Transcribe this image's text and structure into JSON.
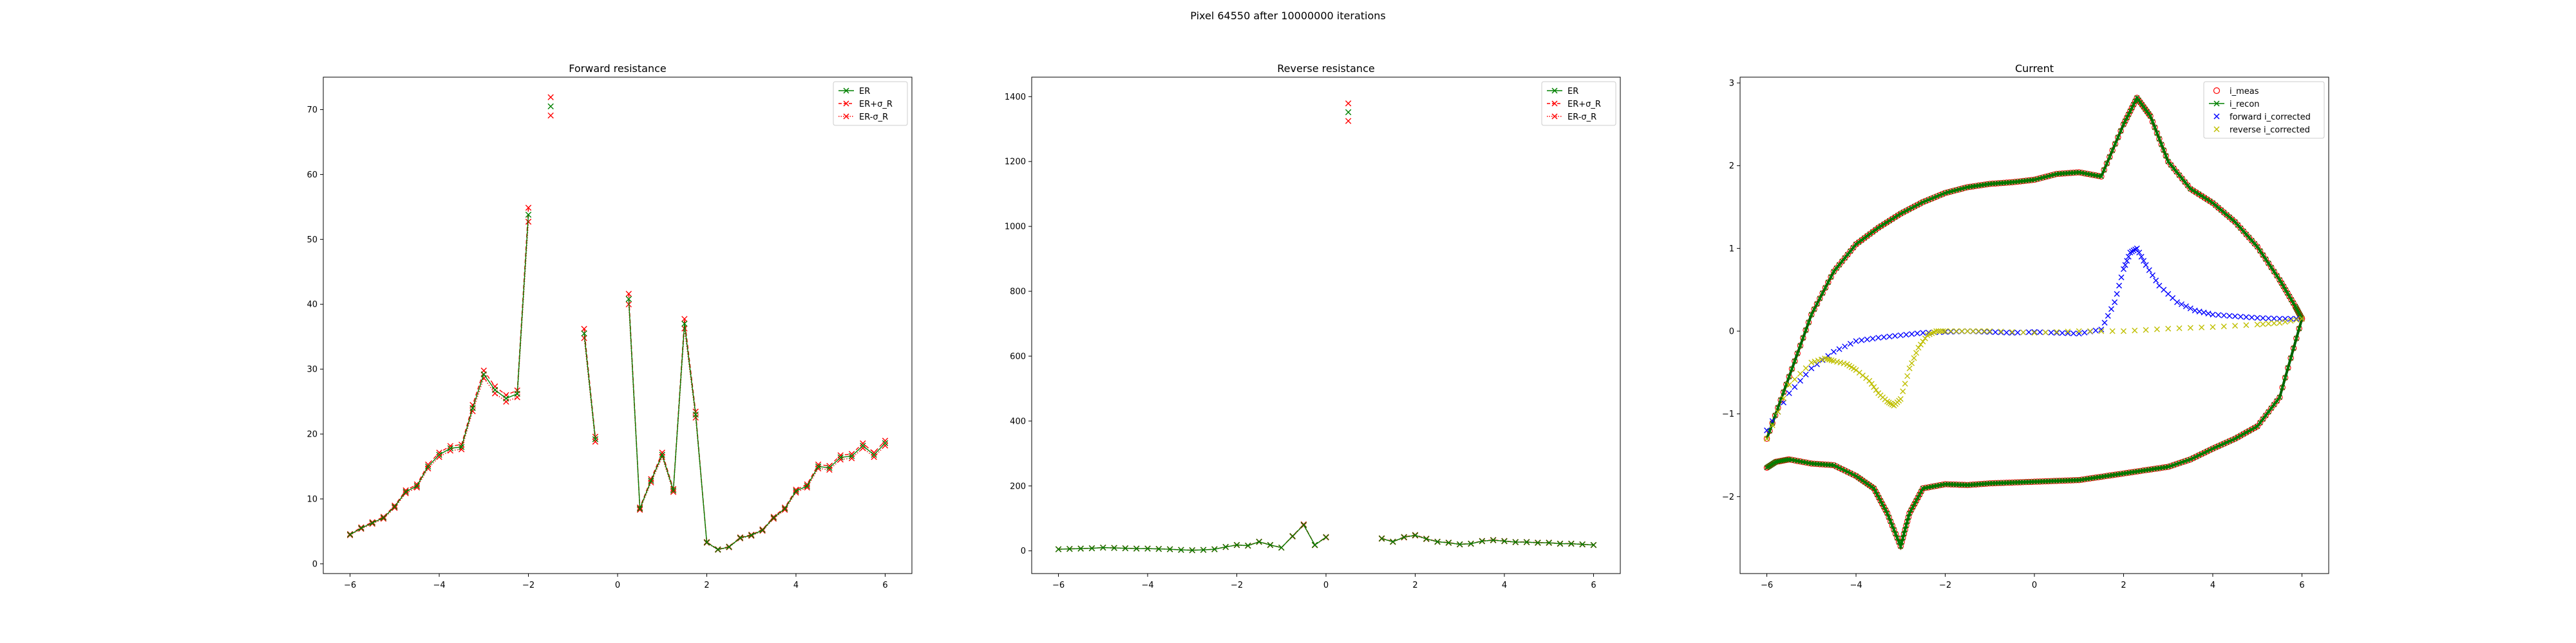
{
  "figure": {
    "suptitle": "Pixel 64550 after 10000000 iterations"
  },
  "chart_data": [
    {
      "type": "line",
      "title": "Forward resistance",
      "xlabel": "",
      "ylabel": "",
      "xlim": [
        -6.6,
        6.6
      ],
      "ylim": [
        -1.5,
        75
      ],
      "xticks": [
        -6,
        -4,
        -2,
        0,
        2,
        4,
        6
      ],
      "yticks": [
        0,
        10,
        20,
        30,
        40,
        50,
        60,
        70
      ],
      "legend_position": "top-right",
      "grid": false,
      "segments": [
        {
          "x": [
            -6.0,
            -5.75,
            -5.5,
            -5.25,
            -5.0,
            -4.75,
            -4.5,
            -4.25,
            -4.0,
            -3.75,
            -3.5,
            -3.25,
            -3.0,
            -2.75,
            -2.5,
            -2.25,
            -2.0
          ],
          "y": [
            4.5,
            5.5,
            6.3,
            7.1,
            8.8,
            11.1,
            12.0,
            15.0,
            16.8,
            17.8,
            18.0,
            24.0,
            29.2,
            26.8,
            25.5,
            26.2,
            53.8
          ]
        },
        {
          "x": [
            -1.5
          ],
          "y": [
            70.5
          ]
        },
        {
          "x": [
            -0.75,
            -0.5
          ],
          "y": [
            35.5,
            19.2
          ]
        },
        {
          "x": [
            0.25,
            0.5,
            0.75,
            1.0,
            1.25,
            1.5,
            1.75,
            2.0,
            2.25,
            2.5,
            2.75,
            3.0,
            3.25,
            3.5,
            3.75,
            4.0,
            4.25,
            4.5,
            4.75,
            5.0,
            5.25,
            5.5,
            5.75,
            6.0
          ],
          "y": [
            40.8,
            8.5,
            12.8,
            16.8,
            11.3,
            37.0,
            23.0,
            3.3,
            2.2,
            2.6,
            4.0,
            4.4,
            5.2,
            7.1,
            8.5,
            11.2,
            12.0,
            15.0,
            14.8,
            16.4,
            16.6,
            18.2,
            16.8,
            18.6
          ]
        }
      ],
      "error_fraction": 0.02,
      "series": [
        {
          "name": "ER",
          "color": "#008000",
          "marker": "x",
          "line": "solid"
        },
        {
          "name": "ER+σ_R",
          "color": "#ff0000",
          "marker": "x",
          "line": "dashed"
        },
        {
          "name": "ER-σ_R",
          "color": "#ff0000",
          "marker": "x",
          "line": "dotted"
        }
      ]
    },
    {
      "type": "line",
      "title": "Reverse resistance",
      "xlabel": "",
      "ylabel": "",
      "xlim": [
        -6.6,
        6.6
      ],
      "ylim": [
        -70,
        1460
      ],
      "xticks": [
        -6,
        -4,
        -2,
        0,
        2,
        4,
        6
      ],
      "yticks": [
        0,
        200,
        400,
        600,
        800,
        1000,
        1200,
        1400
      ],
      "legend_position": "top-right",
      "grid": false,
      "segments": [
        {
          "x": [
            -6.0,
            -5.75,
            -5.5,
            -5.25,
            -5.0,
            -4.75,
            -4.5,
            -4.25,
            -4.0,
            -3.75,
            -3.5,
            -3.25,
            -3.0,
            -2.75,
            -2.5,
            -2.25,
            -2.0,
            -1.75,
            -1.5,
            -1.25,
            -1.0,
            -0.75,
            -0.5,
            -0.25
          ],
          "y": [
            5,
            6,
            7,
            8,
            10,
            9,
            8,
            7,
            7,
            6,
            5,
            3,
            2,
            3,
            5,
            12,
            18,
            16,
            28,
            18,
            10,
            45,
            80,
            18
          ]
        },
        {
          "x": [
            -0.25,
            0.0
          ],
          "y": [
            18,
            42
          ]
        },
        {
          "x": [
            0.5
          ],
          "y": [
            1352
          ]
        },
        {
          "x": [
            1.25,
            1.5,
            1.75,
            2.0,
            2.25,
            2.5,
            2.75,
            3.0,
            3.25,
            3.5,
            3.75,
            4.0,
            4.25,
            4.5,
            4.75,
            5.0,
            5.25,
            5.5,
            5.75,
            6.0
          ],
          "y": [
            38,
            28,
            42,
            48,
            37,
            28,
            25,
            20,
            22,
            30,
            33,
            30,
            27,
            27,
            25,
            25,
            22,
            22,
            20,
            18
          ]
        }
      ],
      "error_fraction": 0.02,
      "series": [
        {
          "name": "ER",
          "color": "#008000",
          "marker": "x",
          "line": "solid"
        },
        {
          "name": "ER+σ_R",
          "color": "#ff0000",
          "marker": "x",
          "line": "dashed"
        },
        {
          "name": "ER-σ_R",
          "color": "#ff0000",
          "marker": "x",
          "line": "dotted"
        }
      ]
    },
    {
      "type": "scatter",
      "title": "Current",
      "xlabel": "",
      "ylabel": "",
      "xlim": [
        -6.6,
        6.6
      ],
      "ylim": [
        -2.93,
        3.07
      ],
      "xticks": [
        -6,
        -4,
        -2,
        0,
        2,
        4,
        6
      ],
      "yticks": [
        -2,
        -1,
        0,
        1,
        2,
        3
      ],
      "legend_position": "top-right",
      "grid": false,
      "loop": {
        "upper": {
          "x": [
            -6.0,
            -5.5,
            -5.0,
            -4.5,
            -4.0,
            -3.5,
            -3.0,
            -2.5,
            -2.0,
            -1.5,
            -1.0,
            -0.5,
            0.0,
            0.5,
            1.0,
            1.5,
            2.0,
            2.3,
            2.6,
            3.0,
            3.5,
            4.0,
            4.5,
            5.0,
            5.5,
            5.85,
            6.0
          ],
          "y": [
            -1.3,
            -0.55,
            0.2,
            0.72,
            1.05,
            1.25,
            1.42,
            1.56,
            1.67,
            1.74,
            1.78,
            1.8,
            1.83,
            1.9,
            1.92,
            1.87,
            2.5,
            2.82,
            2.6,
            2.05,
            1.72,
            1.55,
            1.32,
            1.02,
            0.62,
            0.3,
            0.15
          ]
        },
        "lower": {
          "x": [
            6.0,
            5.5,
            5.0,
            4.5,
            4.0,
            3.5,
            3.0,
            2.5,
            2.0,
            1.5,
            1.0,
            0.5,
            0.0,
            -0.5,
            -1.0,
            -1.5,
            -2.0,
            -2.5,
            -2.8,
            -3.0,
            -3.3,
            -3.6,
            -4.0,
            -4.5,
            -5.0,
            -5.5,
            -5.8,
            -6.0
          ],
          "y": [
            0.15,
            -0.8,
            -1.15,
            -1.3,
            -1.42,
            -1.55,
            -1.64,
            -1.68,
            -1.72,
            -1.76,
            -1.8,
            -1.81,
            -1.82,
            -1.83,
            -1.84,
            -1.86,
            -1.85,
            -1.9,
            -2.2,
            -2.6,
            -2.2,
            -1.9,
            -1.75,
            -1.62,
            -1.6,
            -1.55,
            -1.58,
            -1.65
          ]
        }
      },
      "forward_i_corrected": {
        "x": [
          -6.0,
          -5.5,
          -5.0,
          -4.5,
          -4.0,
          -3.5,
          -3.0,
          -2.5,
          -2.0,
          -1.5,
          -1.0,
          -0.5,
          0.0,
          0.5,
          1.0,
          1.5,
          1.8,
          2.0,
          2.15,
          2.3,
          2.5,
          2.8,
          3.2,
          3.6,
          4.0,
          4.5,
          5.0,
          5.5,
          6.0
        ],
        "y": [
          -1.2,
          -0.75,
          -0.45,
          -0.25,
          -0.12,
          -0.08,
          -0.05,
          -0.02,
          -0.01,
          0.0,
          -0.01,
          -0.02,
          -0.01,
          -0.02,
          -0.03,
          0.02,
          0.35,
          0.75,
          0.95,
          1.0,
          0.8,
          0.55,
          0.35,
          0.25,
          0.2,
          0.18,
          0.16,
          0.15,
          0.15
        ]
      },
      "reverse_i_corrected": {
        "x": [
          -6.0,
          -5.5,
          -5.0,
          -4.7,
          -4.5,
          -4.2,
          -4.0,
          -3.7,
          -3.5,
          -3.3,
          -3.15,
          -3.0,
          -2.8,
          -2.6,
          -2.4,
          -2.2,
          -2.0,
          -1.5,
          -1.0,
          0.0,
          1.0,
          2.0,
          3.0,
          4.0,
          5.0,
          5.5,
          6.0
        ],
        "y": [
          -1.3,
          -0.65,
          -0.38,
          -0.33,
          -0.36,
          -0.4,
          -0.47,
          -0.6,
          -0.75,
          -0.85,
          -0.9,
          -0.82,
          -0.45,
          -0.2,
          -0.05,
          0.0,
          0.0,
          0.0,
          0.0,
          -0.02,
          0.0,
          0.0,
          0.03,
          0.05,
          0.08,
          0.1,
          0.15
        ]
      },
      "series": [
        {
          "name": "i_meas",
          "color": "#ff0000",
          "marker": "o"
        },
        {
          "name": "i_recon",
          "color": "#008000",
          "marker": "x",
          "line": "solid"
        },
        {
          "name": "forward i_corrected",
          "color": "#0000ff",
          "marker": "x"
        },
        {
          "name": "reverse i_corrected",
          "color": "#bfbf00",
          "marker": "x"
        }
      ]
    }
  ]
}
